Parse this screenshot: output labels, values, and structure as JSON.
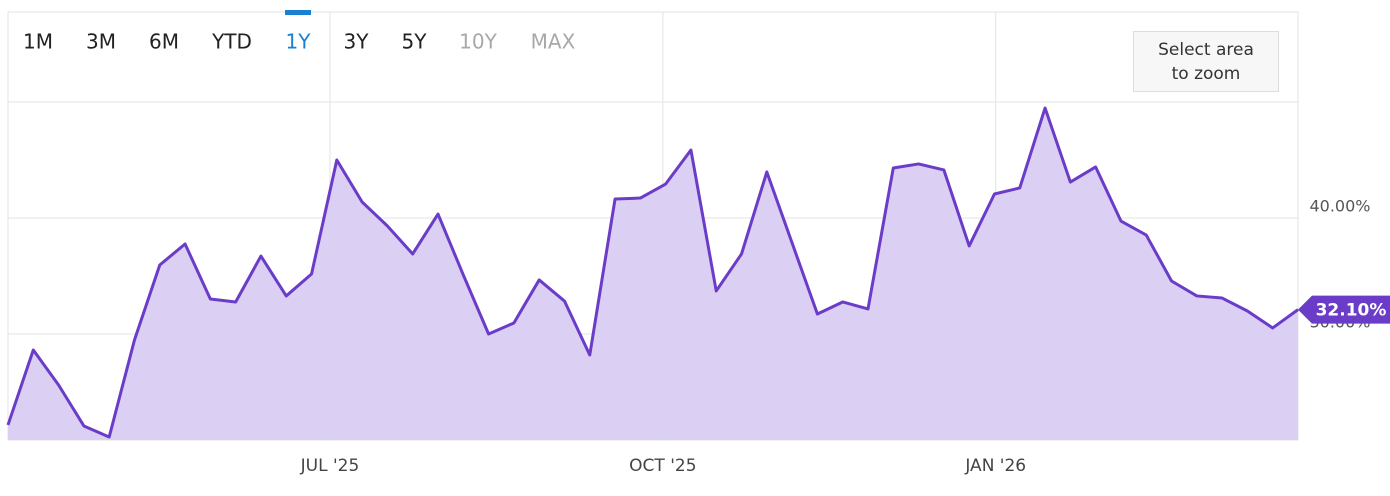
{
  "chart_data": {
    "type": "area",
    "range_buttons": [
      "1M",
      "3M",
      "6M",
      "YTD",
      "1Y",
      "3Y",
      "5Y",
      "10Y",
      "MAX"
    ],
    "selected_range": "1Y",
    "disabled_ranges": [
      "10Y",
      "MAX"
    ],
    "zoom_button": "Select area to zoom",
    "x": [
      0,
      1,
      2,
      3,
      4,
      5,
      6,
      7,
      8,
      9,
      10,
      11,
      12,
      13,
      14,
      15,
      16,
      17,
      18,
      19,
      20,
      21,
      22,
      23,
      24,
      25,
      26,
      27,
      28,
      29,
      30,
      31,
      32,
      33,
      34,
      35,
      36,
      37,
      38,
      39,
      40,
      41,
      42,
      43,
      44,
      45,
      46,
      47,
      48,
      49,
      50,
      51
    ],
    "values": [
      22.16,
      28.62,
      25.6,
      22.07,
      21.12,
      29.48,
      35.95,
      37.76,
      33.02,
      32.76,
      36.72,
      33.28,
      35.17,
      45.0,
      41.38,
      39.31,
      36.9,
      40.34,
      35.09,
      30.0,
      30.95,
      34.66,
      32.84,
      28.19,
      41.64,
      41.72,
      42.93,
      45.86,
      33.71,
      36.9,
      43.97,
      37.84,
      31.72,
      32.76,
      32.16,
      44.31,
      44.66,
      44.14,
      37.59,
      42.07,
      42.59,
      49.48,
      43.1,
      44.4,
      39.74,
      38.53,
      34.57,
      33.28,
      33.1,
      31.98,
      30.52,
      32.1
    ],
    "value_labels": [
      null,
      null,
      null,
      null,
      null,
      null,
      null,
      null,
      null,
      null,
      null,
      null,
      null,
      null,
      null,
      null,
      null,
      null,
      null,
      null,
      null,
      null,
      null,
      null,
      null,
      null,
      null,
      null,
      null,
      null,
      null,
      null,
      null,
      null,
      null,
      null,
      null,
      null,
      null,
      null,
      null,
      null,
      null,
      null,
      null,
      null,
      null,
      null,
      null,
      null,
      null,
      "32.10%"
    ],
    "color": "#6a3cc8",
    "fill_color": "#d9cdf3",
    "xlim": [
      0,
      51
    ],
    "xticks": [
      {
        "value": 12.73,
        "label": "JUL '25"
      },
      {
        "value": 25.89,
        "label": "OCT '25"
      },
      {
        "value": 39.05,
        "label": "JAN '26"
      }
    ],
    "ylim": [
      20.86,
      57.76
    ],
    "yticks": [
      {
        "value": 30,
        "label": "30.00%"
      },
      {
        "value": 40,
        "label": "40.00%"
      }
    ],
    "grid": true
  }
}
